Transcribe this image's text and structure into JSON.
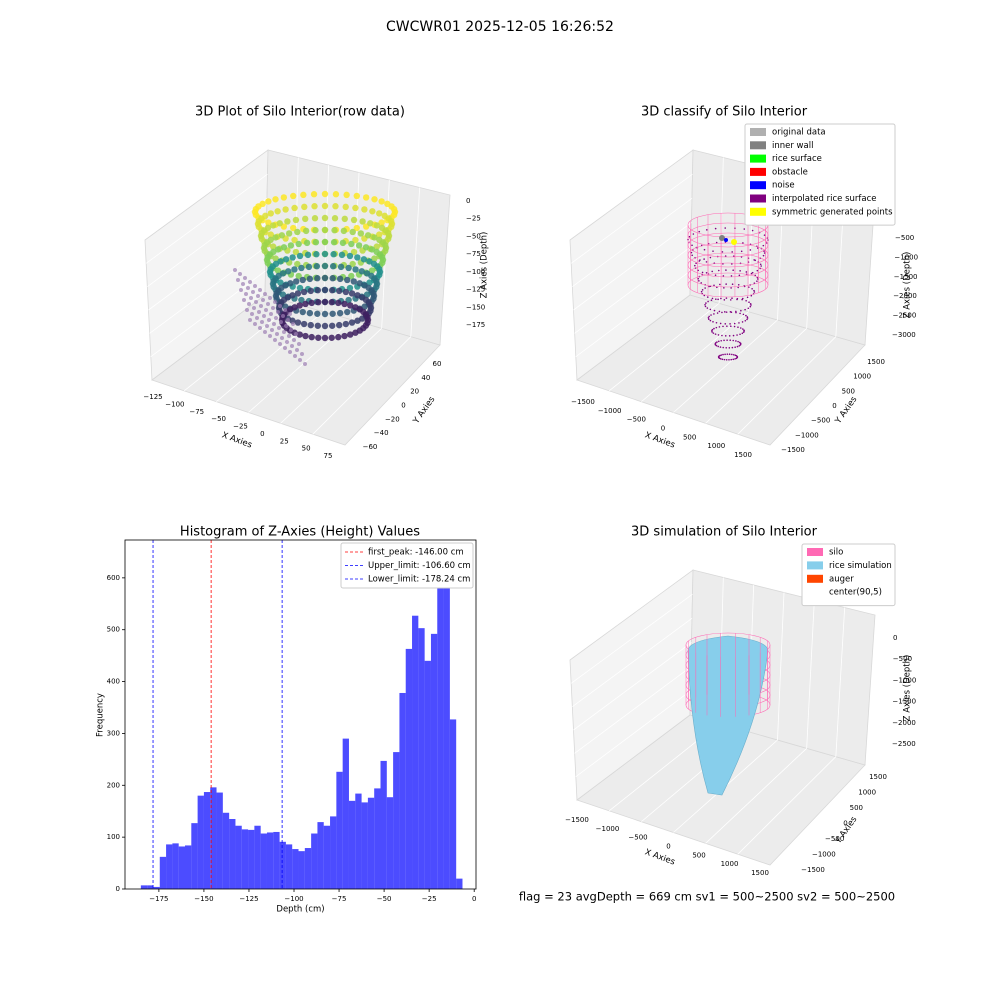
{
  "title": "CWCWR01 2025-12-05 16:26:52",
  "footer": "flag = 23  avgDepth = 669 cm  sv1 = 500~2500  sv2 = 500~2500",
  "chart_data": [
    {
      "type": "scatter3d",
      "title": "3D Plot of Silo Interior(row data)",
      "x_label": "X Axies",
      "y_label": "Y Axies",
      "z_label": "Z Axies (Depth)",
      "xticks": [
        {
          "value": -125,
          "label": "−125"
        },
        {
          "value": -100,
          "label": "−100"
        },
        {
          "value": -75,
          "label": "−75"
        },
        {
          "value": -50,
          "label": "−50"
        },
        {
          "value": -25,
          "label": "−25"
        },
        0,
        25,
        50,
        75
      ],
      "yticks": [
        {
          "value": -60,
          "label": "−60"
        },
        {
          "value": -40,
          "label": "−40"
        },
        {
          "value": -20,
          "label": "−20"
        },
        0,
        20,
        40,
        60
      ],
      "zticks": [
        0,
        {
          "value": -25,
          "label": "−25"
        },
        {
          "value": -50,
          "label": "−50"
        },
        {
          "value": -75,
          "label": "−75"
        },
        {
          "value": -100,
          "label": "−100"
        },
        {
          "value": -125,
          "label": "−125"
        },
        {
          "value": -150,
          "label": "−150"
        },
        {
          "value": -175,
          "label": "−175"
        }
      ]
    },
    {
      "type": "scatter3d",
      "title": "3D classify of Silo Interior",
      "x_label": "X Axies",
      "y_label": "Y Axies",
      "z_label": "Z Axies (Depth)",
      "xticks": [
        {
          "value": -1500,
          "label": "−1500"
        },
        {
          "value": -1000,
          "label": "−1000"
        },
        {
          "value": -500,
          "label": "−500"
        },
        0,
        500,
        1000,
        1500
      ],
      "yticks": [
        {
          "value": -1500,
          "label": "−1500"
        },
        {
          "value": -1000,
          "label": "−1000"
        },
        {
          "value": -500,
          "label": "−500"
        },
        0,
        500,
        1000,
        1500
      ],
      "zticks": [
        {
          "value": -500,
          "label": "−500"
        },
        {
          "value": -1000,
          "label": "−1000"
        },
        {
          "value": -1500,
          "label": "−1500"
        },
        {
          "value": -2000,
          "label": "−2000"
        },
        {
          "value": -2500,
          "label": "−2500"
        },
        {
          "value": -3000,
          "label": "−3000"
        }
      ],
      "legend": "upper right",
      "series": [
        {
          "name": "original data",
          "color": "#b0b0b0"
        },
        {
          "name": "inner wall",
          "color": "#808080"
        },
        {
          "name": "rice surface",
          "color": "#00ff00"
        },
        {
          "name": "obstacle",
          "color": "#ff0000"
        },
        {
          "name": "noise",
          "color": "#0000ff"
        },
        {
          "name": "interpolated rice surface",
          "color": "#800080"
        },
        {
          "name": "symmetric generated points",
          "color": "#ffff00"
        }
      ]
    },
    {
      "type": "histogram",
      "title": "Histogram of Z-Axies (Height) Values",
      "x_label": "Depth (cm)",
      "y_label": "Frequency",
      "color": "#0000ff",
      "xlim": [
        -193.8,
        1
      ],
      "ylim": [
        0,
        673
      ],
      "xticks": [
        {
          "value": -175,
          "label": "−175"
        },
        {
          "value": -150,
          "label": "−150"
        },
        {
          "value": -125,
          "label": "−125"
        },
        {
          "value": -100,
          "label": "−100"
        },
        {
          "value": -75,
          "label": "−75"
        },
        {
          "value": -50,
          "label": "−50"
        },
        {
          "value": -25,
          "label": "−25"
        },
        0
      ],
      "yticks": [
        0,
        100,
        200,
        300,
        400,
        500,
        600
      ],
      "bins": [
        -185,
        -181.5,
        -178,
        -174.5,
        -171,
        -167.5,
        -164,
        -160.5,
        -157,
        -153.5,
        -150,
        -146.5,
        -143,
        -139.5,
        -136,
        -132.5,
        -129,
        -125.5,
        -122,
        -118.5,
        -115,
        -111.5,
        -108,
        -104.5,
        -101,
        -97.5,
        -94,
        -90.5,
        -87,
        -83.5,
        -80,
        -76.5,
        -73,
        -69.5,
        -66,
        -62.5,
        -59,
        -55.5,
        -52,
        -48.5,
        -45,
        -41.5,
        -38,
        -34.5,
        -31,
        -27.5,
        -24,
        -20.5,
        -17,
        -13.5,
        -10,
        -6.5
      ],
      "values": [
        7,
        7,
        4,
        62,
        86,
        88,
        82,
        84,
        127,
        180,
        187,
        196,
        186,
        147,
        135,
        122,
        115,
        114,
        122,
        107,
        109,
        110,
        91,
        86,
        77,
        73,
        79,
        107,
        129,
        122,
        140,
        226,
        290,
        170,
        184,
        167,
        176,
        194,
        247,
        177,
        264,
        378,
        463,
        527,
        503,
        440,
        492,
        580,
        631,
        327,
        20
      ],
      "legend": "upper right",
      "vlines": [
        {
          "name": "first_peak: -146.00 cm",
          "value": -146,
          "color": "#ff0000"
        },
        {
          "name": "Upper_limit: -106.60 cm",
          "value": -106.6,
          "color": "#0000ff"
        },
        {
          "name": "Lower_limit: -178.24 cm",
          "value": -178.24,
          "color": "#0000ff"
        }
      ]
    },
    {
      "type": "surface3d",
      "title": "3D simulation of Silo Interior",
      "x_label": "X Axies",
      "y_label": "Y Axies",
      "z_label": "Z Axies (Depth)",
      "xticks": [
        {
          "value": -1500,
          "label": "−1500"
        },
        {
          "value": -1000,
          "label": "−1000"
        },
        {
          "value": -500,
          "label": "−500"
        },
        0,
        500,
        1000,
        1500
      ],
      "yticks": [
        {
          "value": -1500,
          "label": "−1500"
        },
        {
          "value": -1000,
          "label": "−1000"
        },
        {
          "value": -500,
          "label": "−500"
        },
        0,
        500,
        1000,
        1500
      ],
      "zticks": [
        0,
        {
          "value": -500,
          "label": "−500"
        },
        {
          "value": -1000,
          "label": "−1000"
        },
        {
          "value": -1500,
          "label": "−1500"
        },
        {
          "value": -2000,
          "label": "−2000"
        },
        {
          "value": -2500,
          "label": "−2500"
        }
      ],
      "legend": "upper right",
      "series": [
        {
          "name": "silo",
          "color": "#ff69b4"
        },
        {
          "name": "rice simulation",
          "color": "#87ceeb"
        },
        {
          "name": "auger",
          "color": "#ff4500"
        },
        {
          "name": "center(90,5)",
          "color": "#ffffff"
        }
      ]
    }
  ]
}
